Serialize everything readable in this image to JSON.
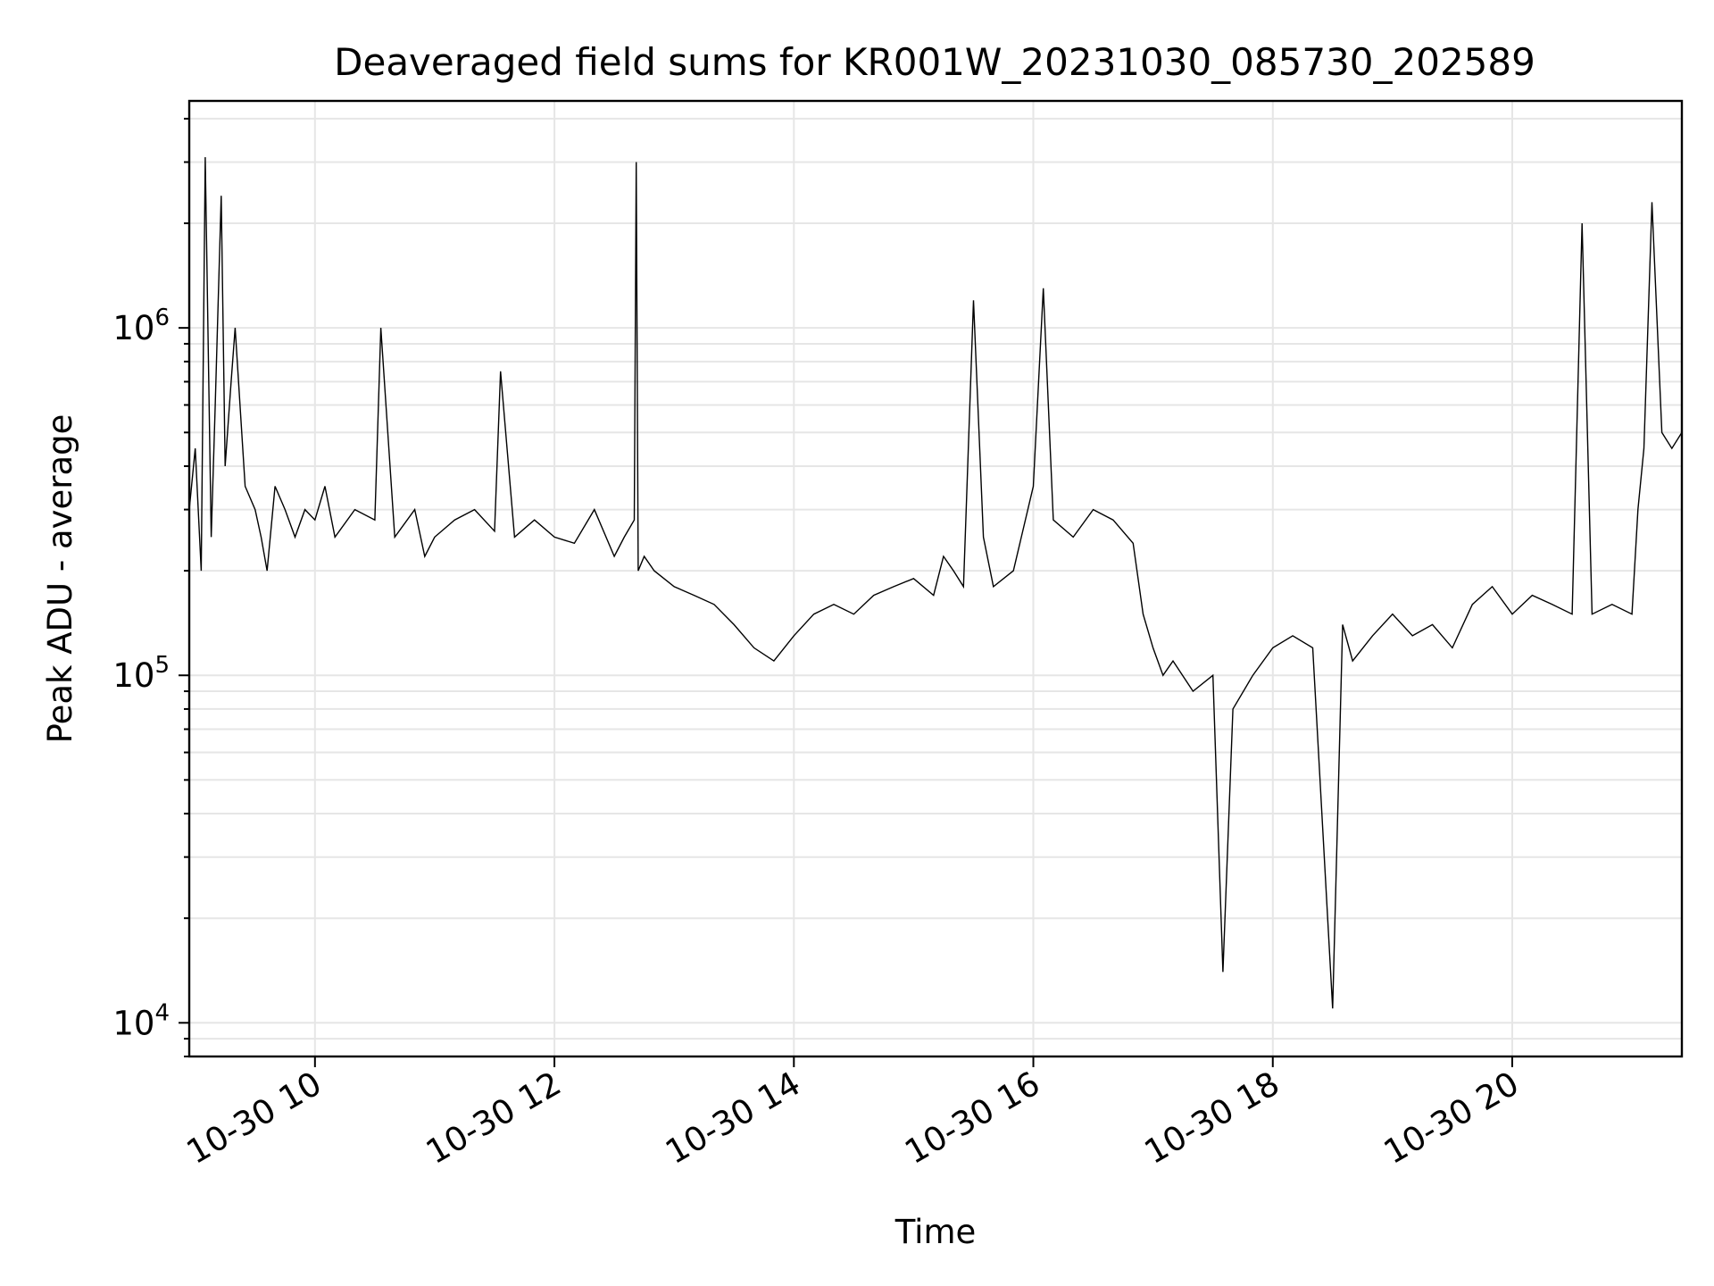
{
  "chart_data": {
    "type": "line",
    "title": "Deaveraged field sums for KR001W_20231030_085730_202589",
    "xlabel": "Time",
    "ylabel": "Peak ADU - average",
    "y_scale": "log",
    "ylim": [
      8000,
      4500000
    ],
    "xlim": [
      "2023-10-30 08:57",
      "2023-10-30 21:25"
    ],
    "grid": true,
    "x_ticks": [
      {
        "value": "2023-10-30 10:00",
        "label": "10-30 10"
      },
      {
        "value": "2023-10-30 12:00",
        "label": "10-30 12"
      },
      {
        "value": "2023-10-30 14:00",
        "label": "10-30 14"
      },
      {
        "value": "2023-10-30 16:00",
        "label": "10-30 16"
      },
      {
        "value": "2023-10-30 18:00",
        "label": "10-30 18"
      },
      {
        "value": "2023-10-30 20:00",
        "label": "10-30 20"
      }
    ],
    "y_ticks": [
      {
        "value": 10000,
        "base": "10",
        "exp": "4"
      },
      {
        "value": 100000,
        "base": "10",
        "exp": "5"
      },
      {
        "value": 1000000,
        "base": "10",
        "exp": "6"
      }
    ],
    "line_color": "#000000",
    "series": [
      {
        "x": [
          "2023-10-30 08:57",
          "2023-10-30 09:00",
          "2023-10-30 09:03",
          "2023-10-30 09:05",
          "2023-10-30 09:08",
          "2023-10-30 09:10",
          "2023-10-30 09:13",
          "2023-10-30 09:15",
          "2023-10-30 09:18",
          "2023-10-30 09:20",
          "2023-10-30 09:25",
          "2023-10-30 09:30",
          "2023-10-30 09:33",
          "2023-10-30 09:36",
          "2023-10-30 09:40",
          "2023-10-30 09:45",
          "2023-10-30 09:50",
          "2023-10-30 09:55",
          "2023-10-30 10:00",
          "2023-10-30 10:05",
          "2023-10-30 10:10",
          "2023-10-30 10:20",
          "2023-10-30 10:30",
          "2023-10-30 10:33",
          "2023-10-30 10:40",
          "2023-10-30 10:50",
          "2023-10-30 10:55",
          "2023-10-30 11:00",
          "2023-10-30 11:10",
          "2023-10-30 11:20",
          "2023-10-30 11:30",
          "2023-10-30 11:33",
          "2023-10-30 11:40",
          "2023-10-30 11:50",
          "2023-10-30 12:00",
          "2023-10-30 12:10",
          "2023-10-30 12:20",
          "2023-10-30 12:30",
          "2023-10-30 12:35",
          "2023-10-30 12:40",
          "2023-10-30 12:41",
          "2023-10-30 12:42",
          "2023-10-30 12:45",
          "2023-10-30 12:50",
          "2023-10-30 13:00",
          "2023-10-30 13:10",
          "2023-10-30 13:20",
          "2023-10-30 13:30",
          "2023-10-30 13:40",
          "2023-10-30 13:50",
          "2023-10-30 14:00",
          "2023-10-30 14:10",
          "2023-10-30 14:20",
          "2023-10-30 14:30",
          "2023-10-30 14:40",
          "2023-10-30 14:50",
          "2023-10-30 15:00",
          "2023-10-30 15:10",
          "2023-10-30 15:15",
          "2023-10-30 15:20",
          "2023-10-30 15:25",
          "2023-10-30 15:30",
          "2023-10-30 15:35",
          "2023-10-30 15:40",
          "2023-10-30 15:50",
          "2023-10-30 16:00",
          "2023-10-30 16:05",
          "2023-10-30 16:10",
          "2023-10-30 16:20",
          "2023-10-30 16:30",
          "2023-10-30 16:40",
          "2023-10-30 16:50",
          "2023-10-30 16:55",
          "2023-10-30 17:00",
          "2023-10-30 17:05",
          "2023-10-30 17:10",
          "2023-10-30 17:20",
          "2023-10-30 17:30",
          "2023-10-30 17:35",
          "2023-10-30 17:40",
          "2023-10-30 17:50",
          "2023-10-30 18:00",
          "2023-10-30 18:10",
          "2023-10-30 18:20",
          "2023-10-30 18:30",
          "2023-10-30 18:35",
          "2023-10-30 18:40",
          "2023-10-30 18:50",
          "2023-10-30 19:00",
          "2023-10-30 19:10",
          "2023-10-30 19:20",
          "2023-10-30 19:30",
          "2023-10-30 19:40",
          "2023-10-30 19:50",
          "2023-10-30 20:00",
          "2023-10-30 20:10",
          "2023-10-30 20:20",
          "2023-10-30 20:30",
          "2023-10-30 20:35",
          "2023-10-30 20:40",
          "2023-10-30 20:50",
          "2023-10-30 21:00",
          "2023-10-30 21:03",
          "2023-10-30 21:06",
          "2023-10-30 21:10",
          "2023-10-30 21:15",
          "2023-10-30 21:20",
          "2023-10-30 21:25"
        ],
        "values": [
          300000,
          450000,
          200000,
          3100000,
          250000,
          600000,
          2400000,
          400000,
          700000,
          1000000,
          350000,
          300000,
          250000,
          200000,
          350000,
          300000,
          250000,
          300000,
          280000,
          350000,
          250000,
          300000,
          280000,
          1000000,
          250000,
          300000,
          220000,
          250000,
          280000,
          300000,
          260000,
          750000,
          250000,
          280000,
          250000,
          240000,
          300000,
          220000,
          250000,
          280000,
          3000000,
          200000,
          220000,
          200000,
          180000,
          170000,
          160000,
          140000,
          120000,
          110000,
          130000,
          150000,
          160000,
          150000,
          170000,
          180000,
          190000,
          170000,
          220000,
          200000,
          180000,
          1200000,
          250000,
          180000,
          200000,
          350000,
          1300000,
          280000,
          250000,
          300000,
          280000,
          240000,
          150000,
          120000,
          100000,
          110000,
          90000,
          100000,
          14000,
          80000,
          100000,
          120000,
          130000,
          120000,
          11000,
          140000,
          110000,
          130000,
          150000,
          130000,
          140000,
          120000,
          160000,
          180000,
          150000,
          170000,
          160000,
          150000,
          2000000,
          150000,
          160000,
          150000,
          300000,
          450000,
          2300000,
          500000,
          450000,
          500000
        ]
      }
    ]
  }
}
